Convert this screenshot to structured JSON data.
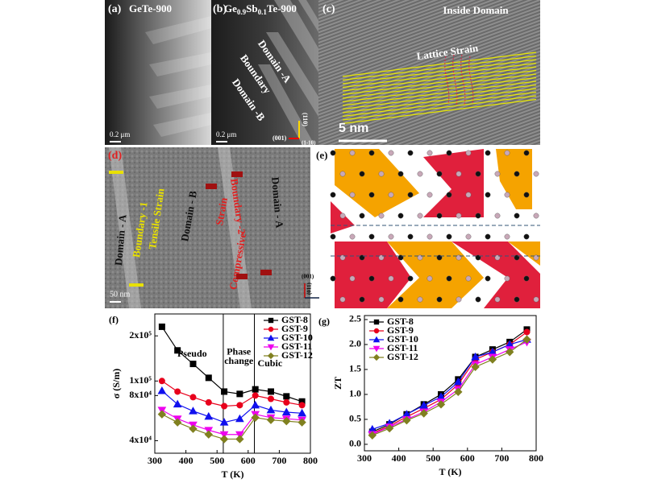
{
  "figure": {
    "a": {
      "label": "(a)",
      "title": "GeTe-900",
      "scale": "0.2 μm"
    },
    "b": {
      "label": "(b)",
      "title": [
        "Ge",
        "0.9",
        "Sb",
        "0.1",
        "Te-900"
      ],
      "boundary": "Boundary",
      "domain_a": "Domain -A",
      "domain_b": "Domain -B",
      "axis_001": "(001)",
      "axis_110": "(110)",
      "axis_1m10": "(1-10)",
      "scale": "0.2 μm"
    },
    "c": {
      "label": "(c)",
      "title": "Inside Domain",
      "strain": "Lattice Strain",
      "scale": "5 nm"
    },
    "d": {
      "label": "(d)",
      "domain_a_left": "Domain - A",
      "boundary_1": "Boundary -1",
      "tensile": "Tensile Strain",
      "domain_b": "Domain - B",
      "compressive": "Compressive",
      "strain": "Strain",
      "boundary_2": "Boundary -2",
      "domain_a_right": "Domain - A",
      "scale": "50 nm"
    },
    "e": {
      "label": "(e)",
      "axis_001": "(001)",
      "axis_011": "(011)"
    }
  },
  "chart_data": [
    {
      "type": "line",
      "label": "(f)",
      "xlabel": "T (K)",
      "ylabel": "σ (S/m)",
      "log_y": true,
      "xlim": [
        300,
        800
      ],
      "xticks": [
        300,
        400,
        500,
        600,
        700,
        800
      ],
      "ylim": [
        33000,
        280000
      ],
      "yticks": [
        {
          "value": 40000,
          "label": "4x10⁴"
        },
        {
          "value": 80000,
          "label": "8x10⁴"
        },
        {
          "value": 100000,
          "label": "1x10⁵"
        },
        {
          "value": 200000,
          "label": "2x10⁵"
        }
      ],
      "vlines": [
        520,
        620
      ],
      "annotations": [
        {
          "text": "Pseudo",
          "x": 420,
          "y": 150000
        },
        {
          "text": "Phase",
          "x": 570,
          "y": 155000
        },
        {
          "text": "change",
          "x": 570,
          "y": 135000
        },
        {
          "text": "Cubic",
          "x": 670,
          "y": 130000
        }
      ],
      "legend": "top-right",
      "x": [
        323,
        373,
        423,
        473,
        523,
        573,
        623,
        673,
        723,
        773
      ],
      "series": [
        {
          "name": "GST-8",
          "color": "#000000",
          "marker": "square",
          "values": [
            230000,
            160000,
            130000,
            105000,
            85000,
            82000,
            88000,
            85000,
            79000,
            73000
          ]
        },
        {
          "name": "GST-9",
          "color": "#e8001c",
          "marker": "circle",
          "values": [
            100000,
            85000,
            78000,
            72000,
            68000,
            69000,
            80000,
            76000,
            72000,
            69000
          ]
        },
        {
          "name": "GST-10",
          "color": "#1010ee",
          "marker": "triangle-up",
          "values": [
            86000,
            70000,
            63000,
            58000,
            53000,
            56000,
            69000,
            64000,
            62000,
            61000
          ]
        },
        {
          "name": "GST-11",
          "color": "#ee00ee",
          "marker": "triangle-down",
          "values": [
            64000,
            56000,
            51000,
            47000,
            44000,
            44000,
            60000,
            57000,
            56000,
            55000
          ]
        },
        {
          "name": "GST-12",
          "color": "#808020",
          "marker": "diamond",
          "values": [
            60000,
            53000,
            48000,
            44000,
            41000,
            41000,
            57000,
            55000,
            54000,
            53000
          ]
        }
      ]
    },
    {
      "type": "line",
      "label": "(g)",
      "xlabel": "T (K)",
      "ylabel": "ZT",
      "log_y": false,
      "xlim": [
        300,
        800
      ],
      "xticks": [
        300,
        400,
        500,
        600,
        700,
        800
      ],
      "ylim": [
        -0.13,
        2.58
      ],
      "yticks": [
        {
          "value": 0,
          "label": "0.0"
        },
        0.5,
        {
          "value": 1,
          "label": "1.0"
        },
        1.5,
        {
          "value": 2,
          "label": "2.0"
        },
        2.5
      ],
      "legend": "top-left",
      "x": [
        323,
        373,
        423,
        473,
        523,
        573,
        623,
        673,
        723,
        773
      ],
      "series": [
        {
          "name": "GST-8",
          "color": "#000000",
          "marker": "square",
          "values": [
            0.25,
            0.4,
            0.6,
            0.8,
            1.0,
            1.3,
            1.75,
            1.9,
            2.05,
            2.3
          ]
        },
        {
          "name": "GST-9",
          "color": "#e8001c",
          "marker": "circle",
          "values": [
            0.22,
            0.37,
            0.55,
            0.72,
            0.9,
            1.2,
            1.7,
            1.85,
            2.0,
            2.25
          ]
        },
        {
          "name": "GST-10",
          "color": "#1010ee",
          "marker": "triangle-up",
          "values": [
            0.3,
            0.42,
            0.6,
            0.78,
            0.95,
            1.25,
            1.75,
            1.85,
            2.0,
            2.1
          ]
        },
        {
          "name": "GST-11",
          "color": "#ee00ee",
          "marker": "triangle-down",
          "values": [
            0.2,
            0.35,
            0.5,
            0.65,
            0.85,
            1.1,
            1.6,
            1.75,
            1.9,
            2.05
          ]
        },
        {
          "name": "GST-12",
          "color": "#808020",
          "marker": "diamond",
          "values": [
            0.18,
            0.32,
            0.48,
            0.62,
            0.8,
            1.05,
            1.55,
            1.7,
            1.85,
            2.1
          ]
        }
      ]
    }
  ]
}
